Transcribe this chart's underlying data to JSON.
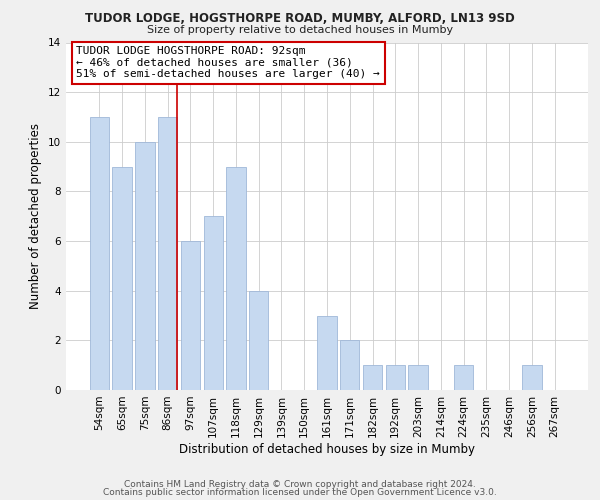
{
  "title": "TUDOR LODGE, HOGSTHORPE ROAD, MUMBY, ALFORD, LN13 9SD",
  "subtitle": "Size of property relative to detached houses in Mumby",
  "xlabel": "Distribution of detached houses by size in Mumby",
  "ylabel": "Number of detached properties",
  "categories": [
    "54sqm",
    "65sqm",
    "75sqm",
    "86sqm",
    "97sqm",
    "107sqm",
    "118sqm",
    "129sqm",
    "139sqm",
    "150sqm",
    "161sqm",
    "171sqm",
    "182sqm",
    "192sqm",
    "203sqm",
    "214sqm",
    "224sqm",
    "235sqm",
    "246sqm",
    "256sqm",
    "267sqm"
  ],
  "values": [
    11,
    9,
    10,
    11,
    6,
    7,
    9,
    4,
    0,
    0,
    3,
    2,
    1,
    1,
    1,
    0,
    1,
    0,
    0,
    1,
    0
  ],
  "bar_color": "#c6d9f0",
  "bar_edge_color": "#a0b8d8",
  "highlight_index": 3,
  "highlight_line_color": "#cc0000",
  "annotation_box_text": "TUDOR LODGE HOGSTHORPE ROAD: 92sqm\n← 46% of detached houses are smaller (36)\n51% of semi-detached houses are larger (40) →",
  "ylim": [
    0,
    14
  ],
  "yticks": [
    0,
    2,
    4,
    6,
    8,
    10,
    12,
    14
  ],
  "footer1": "Contains HM Land Registry data © Crown copyright and database right 2024.",
  "footer2": "Contains public sector information licensed under the Open Government Licence v3.0.",
  "title_fontsize": 8.5,
  "subtitle_fontsize": 8.0,
  "axis_label_fontsize": 8.5,
  "tick_fontsize": 7.5,
  "annotation_fontsize": 8.0,
  "footer_fontsize": 6.5,
  "bg_color": "#f0f0f0",
  "plot_bg_color": "#ffffff",
  "grid_color": "#cccccc"
}
